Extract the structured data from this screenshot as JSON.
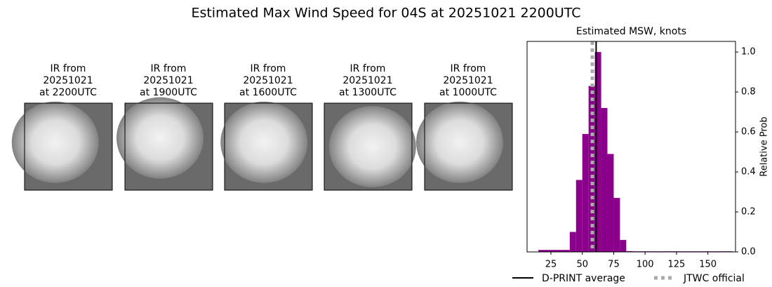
{
  "title": "Estimated Max Wind Speed for 04S at 20251021 2200UTC",
  "panels": [
    {
      "caption": [
        "IR from",
        "20251021",
        "at 2200UTC"
      ]
    },
    {
      "caption": [
        "IR from",
        "20251021",
        "at 1900UTC"
      ]
    },
    {
      "caption": [
        "IR from",
        "20251021",
        "at 1600UTC"
      ]
    },
    {
      "caption": [
        "IR from",
        "20251021",
        "at 1300UTC"
      ]
    },
    {
      "caption": [
        "IR from",
        "20251021",
        "at 1000UTC"
      ]
    }
  ],
  "chart_data": {
    "type": "histogram",
    "title": "Estimated MSW, knots",
    "ylabel": "Relative Prob",
    "color": "#8b008b",
    "bins": [
      15,
      20,
      25,
      30,
      35,
      40,
      45,
      50,
      55,
      60,
      65,
      70,
      75,
      80,
      85,
      90,
      95,
      100,
      105,
      110,
      115,
      120,
      125,
      130,
      135,
      140,
      145,
      150,
      155,
      160,
      165,
      170
    ],
    "counts": [
      0.01,
      0.01,
      0.01,
      0.01,
      0.01,
      0.1,
      0.36,
      0.59,
      0.83,
      1.0,
      0.72,
      0.49,
      0.27,
      0.06,
      0.004,
      0.003,
      0.003,
      0.003,
      0.003,
      0.003,
      0.003,
      0.003,
      0.003,
      0.003,
      0.003,
      0.003,
      0.003,
      0.003,
      0.003,
      0.003,
      0.003
    ],
    "xlim": [
      6,
      172
    ],
    "ylim": [
      0,
      1.053
    ],
    "xticks": [
      25,
      50,
      75,
      100,
      125,
      150
    ],
    "yticks": [
      {
        "value": 0,
        "label": "0.0"
      },
      0.2,
      0.4,
      0.6,
      0.8,
      {
        "value": 1,
        "label": "1.0"
      }
    ],
    "yaxis_side": "right",
    "lines": [
      {
        "name": "D-PRINT average",
        "value": 61,
        "color": "#000000",
        "style": "solid"
      },
      {
        "name": "JTWC official",
        "value": 58,
        "color": "#aaaaaa",
        "style": "dotted"
      }
    ]
  }
}
